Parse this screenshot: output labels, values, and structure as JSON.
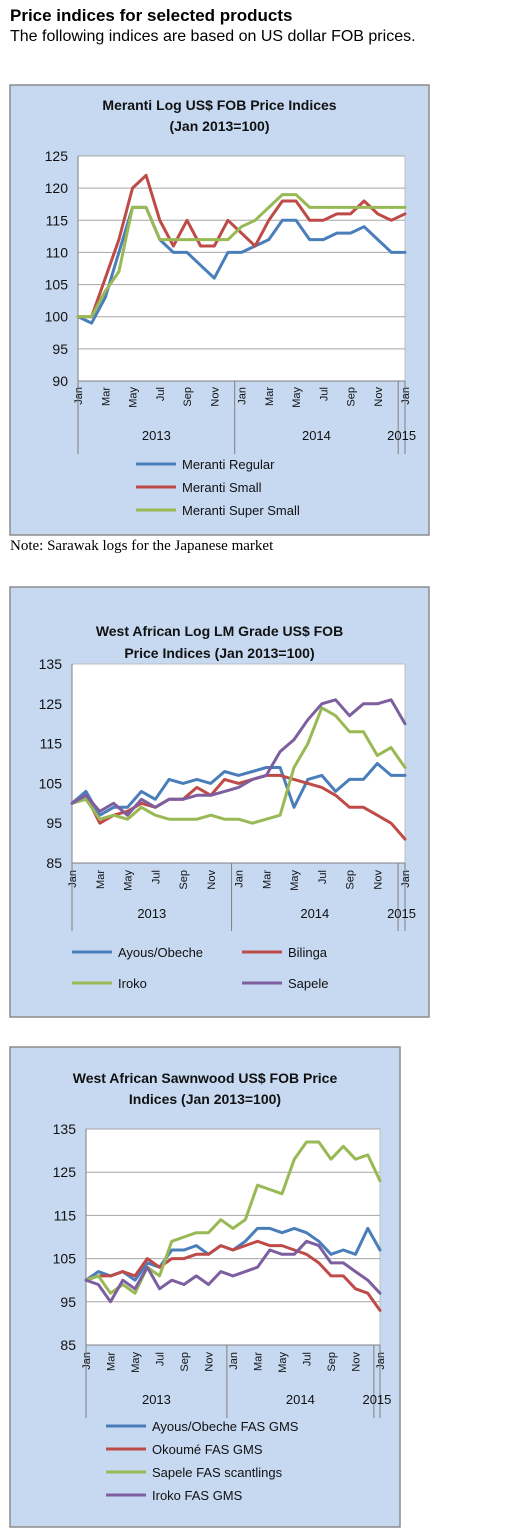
{
  "header": {
    "title": "Price indices for selected products",
    "subtitle": "The following indices are based on US dollar FOB prices."
  },
  "note": "Note: Sarawak logs for the Japanese market",
  "chart_data": [
    {
      "type": "line",
      "title": [
        "Meranti Log US$ FOB Price Indices",
        "(Jan 2013=100)"
      ],
      "x": [
        "Jan",
        "Feb",
        "Mar",
        "Apr",
        "May",
        "Jun",
        "Jul",
        "Aug",
        "Sep",
        "Oct",
        "Nov",
        "Dec",
        "Jan",
        "Feb",
        "Mar",
        "Apr",
        "May",
        "Jun",
        "Jul",
        "Aug",
        "Sep",
        "Oct",
        "Nov",
        "Dec",
        "Jan"
      ],
      "tick_labels": [
        "Jan",
        "Mar",
        "May",
        "Jul",
        "Sep",
        "Nov",
        "Jan",
        "Mar",
        "May",
        "Jul",
        "Sep",
        "Nov",
        "Jan"
      ],
      "years": [
        "2013",
        "2014",
        "2015"
      ],
      "ylim": [
        90,
        125
      ],
      "yticks": [
        90,
        95,
        100,
        105,
        110,
        115,
        120,
        125
      ],
      "grid": true,
      "legend": "bottom",
      "series": [
        {
          "name": "Meranti Regular",
          "color": "#4a7ebb",
          "values": [
            100,
            99,
            103,
            110,
            117,
            117,
            112,
            110,
            110,
            108,
            106,
            110,
            110,
            111,
            112,
            115,
            115,
            112,
            112,
            113,
            113,
            114,
            112,
            110,
            110
          ]
        },
        {
          "name": "Meranti Small",
          "color": "#be4b48",
          "values": [
            100,
            100,
            106,
            112,
            120,
            122,
            115,
            111,
            115,
            111,
            111,
            115,
            113,
            111,
            115,
            118,
            118,
            115,
            115,
            116,
            116,
            118,
            116,
            115,
            116
          ]
        },
        {
          "name": "Meranti Super Small",
          "color": "#98b954",
          "values": [
            100,
            100,
            104,
            107,
            117,
            117,
            112,
            112,
            112,
            112,
            112,
            112,
            114,
            115,
            117,
            119,
            119,
            117,
            117,
            117,
            117,
            117,
            117,
            117,
            117
          ]
        }
      ]
    },
    {
      "type": "line",
      "title": [
        "West African Log LM Grade US$ FOB",
        "Price Indices (Jan 2013=100)"
      ],
      "x": [
        "Jan",
        "Feb",
        "Mar",
        "Apr",
        "May",
        "Jun",
        "Jul",
        "Aug",
        "Sep",
        "Oct",
        "Nov",
        "Dec",
        "Jan",
        "Feb",
        "Mar",
        "Apr",
        "May",
        "Jun",
        "Jul",
        "Aug",
        "Sep",
        "Oct",
        "Nov",
        "Dec",
        "Jan"
      ],
      "tick_labels": [
        "Jan",
        "Mar",
        "May",
        "Jul",
        "Sep",
        "Nov",
        "Jan",
        "Mar",
        "May",
        "Jul",
        "Sep",
        "Nov",
        "Jan"
      ],
      "years": [
        "2013",
        "2014",
        "2015"
      ],
      "ylim": [
        85,
        135
      ],
      "yticks": [
        85,
        95,
        105,
        115,
        125,
        135
      ],
      "grid": false,
      "legend": "bottom",
      "series": [
        {
          "name": "Ayous/Obeche",
          "color": "#4a7ebb",
          "values": [
            100,
            103,
            97,
            99,
            99,
            103,
            101,
            106,
            105,
            106,
            105,
            108,
            107,
            108,
            109,
            109,
            99,
            106,
            107,
            103,
            106,
            106,
            110,
            107,
            107
          ]
        },
        {
          "name": "Bilinga",
          "color": "#be4b48",
          "values": [
            100,
            102,
            95,
            97,
            98,
            100,
            99,
            101,
            101,
            104,
            102,
            106,
            105,
            106,
            107,
            107,
            106,
            105,
            104,
            102,
            99,
            99,
            97,
            95,
            91
          ]
        },
        {
          "name": "Iroko",
          "color": "#98b954",
          "values": [
            100,
            101,
            96,
            97,
            96,
            99,
            97,
            96,
            96,
            96,
            97,
            96,
            96,
            95,
            96,
            97,
            109,
            115,
            124,
            122,
            118,
            118,
            112,
            114,
            109
          ]
        },
        {
          "name": "Sapele",
          "color": "#7d5fa0",
          "values": [
            100,
            102,
            98,
            100,
            97,
            101,
            99,
            101,
            101,
            102,
            102,
            103,
            104,
            106,
            107,
            113,
            116,
            121,
            125,
            126,
            122,
            125,
            125,
            126,
            120
          ]
        }
      ]
    },
    {
      "type": "line",
      "title": [
        "West African Sawnwood US$ FOB Price",
        "Indices (Jan 2013=100)"
      ],
      "x": [
        "Jan",
        "Feb",
        "Mar",
        "Apr",
        "May",
        "Jun",
        "Jul",
        "Aug",
        "Sep",
        "Oct",
        "Nov",
        "Dec",
        "Jan",
        "Feb",
        "Mar",
        "Apr",
        "May",
        "Jun",
        "Jul",
        "Aug",
        "Sep",
        "Oct",
        "Nov",
        "Dec",
        "Jan"
      ],
      "tick_labels": [
        "Jan",
        "Mar",
        "May",
        "Jul",
        "Sep",
        "Nov",
        "Jan",
        "Mar",
        "May",
        "Jul",
        "Sep",
        "Nov",
        "Jan"
      ],
      "years": [
        "2013",
        "2014",
        "2015"
      ],
      "ylim": [
        85,
        135
      ],
      "yticks": [
        85,
        95,
        105,
        115,
        125,
        135
      ],
      "grid": true,
      "legend": "bottom",
      "series": [
        {
          "name": "Ayous/Obeche  FAS GMS",
          "color": "#4a7ebb",
          "values": [
            100,
            102,
            101,
            102,
            100,
            104,
            103,
            107,
            107,
            108,
            106,
            108,
            107,
            109,
            112,
            112,
            111,
            112,
            111,
            109,
            106,
            107,
            106,
            112,
            107
          ]
        },
        {
          "name": "Okoumé  FAS GMS",
          "color": "#be4b48",
          "values": [
            100,
            101,
            101,
            102,
            101,
            105,
            103,
            105,
            105,
            106,
            106,
            108,
            107,
            108,
            109,
            108,
            108,
            107,
            106,
            104,
            101,
            101,
            98,
            97,
            93
          ]
        },
        {
          "name": "Sapele FAS scantlings",
          "color": "#98b954",
          "values": [
            100,
            101,
            97,
            99,
            97,
            103,
            101,
            109,
            110,
            111,
            111,
            114,
            112,
            114,
            122,
            121,
            120,
            128,
            132,
            132,
            128,
            131,
            128,
            129,
            123
          ]
        },
        {
          "name": "Iroko FAS GMS",
          "color": "#7d5fa0",
          "values": [
            100,
            99,
            95,
            100,
            98,
            103,
            98,
            100,
            99,
            101,
            99,
            102,
            101,
            102,
            103,
            107,
            106,
            106,
            109,
            108,
            104,
            104,
            102,
            100,
            97
          ]
        }
      ]
    }
  ]
}
